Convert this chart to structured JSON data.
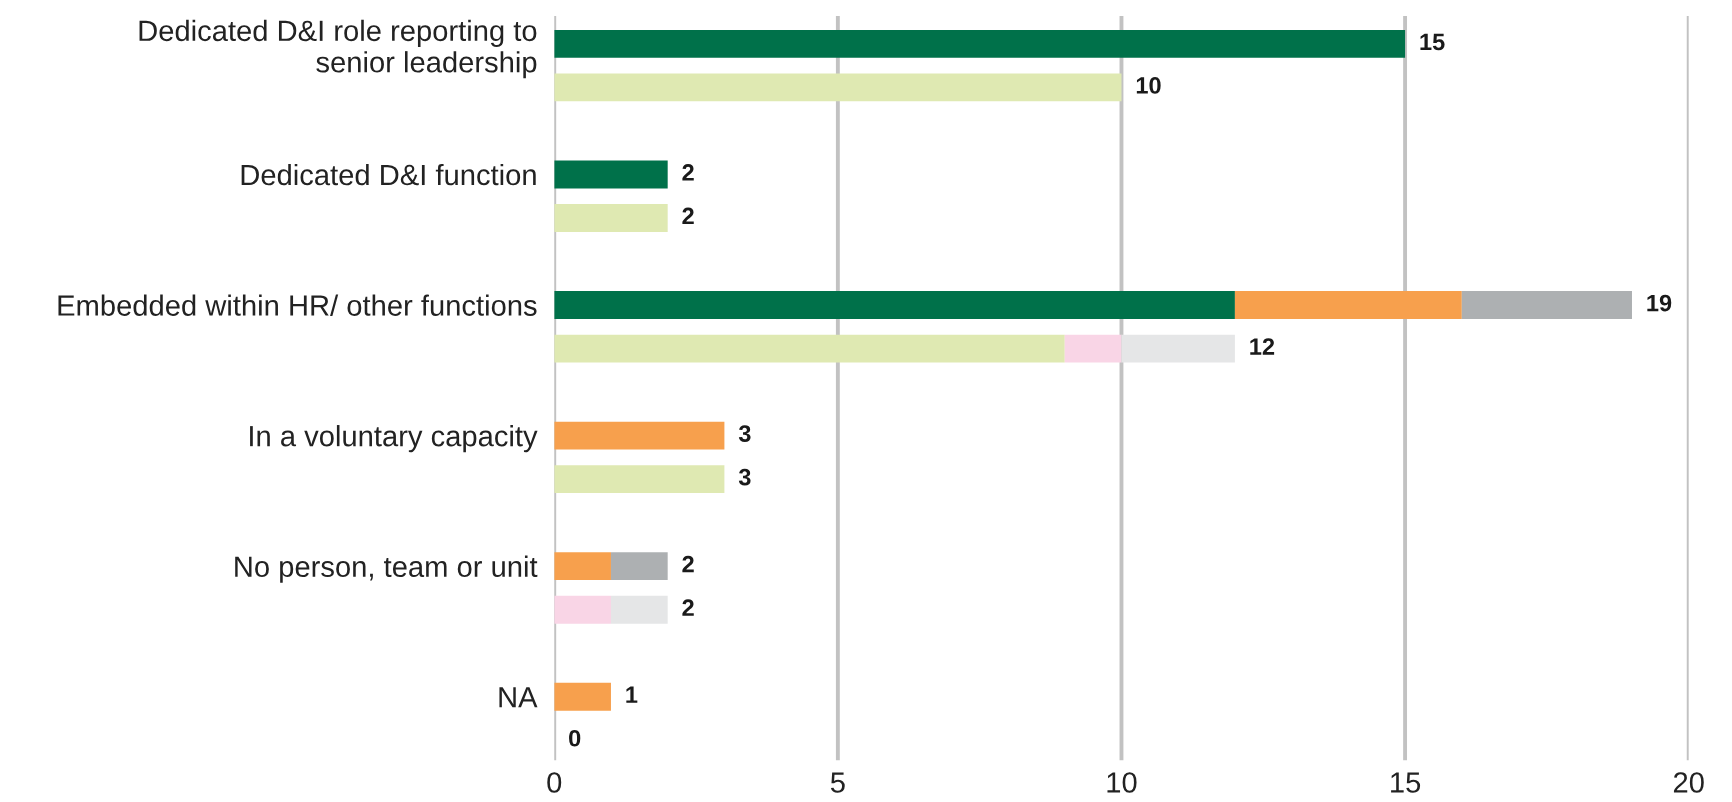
{
  "chart_data": {
    "type": "bar",
    "orientation": "horizontal",
    "stacked": true,
    "categories": [
      "Dedicated D&I role reporting to\nsenior leadership",
      null,
      null,
      "Dedicated D&I function",
      null,
      null,
      "Embedded within HR/ other functions",
      null,
      null,
      "In a voluntary capacity",
      null,
      null,
      "No person, team or unit",
      null,
      null,
      "NA",
      null
    ],
    "series": [
      {
        "color": "#00714a",
        "values": [
          15,
          null,
          null,
          2,
          null,
          null,
          12,
          null,
          null,
          null,
          null,
          null,
          null,
          null,
          null,
          null,
          null
        ]
      },
      {
        "color": "#f7a04d",
        "values": [
          null,
          null,
          null,
          null,
          null,
          null,
          4,
          null,
          null,
          3,
          null,
          null,
          1,
          null,
          null,
          1,
          null
        ]
      },
      {
        "color": "#adb0b2",
        "values": [
          null,
          null,
          null,
          null,
          null,
          null,
          3,
          null,
          null,
          null,
          null,
          null,
          1,
          null,
          null,
          null,
          null
        ]
      },
      {
        "color": "#dfe9b2",
        "values": [
          null,
          10,
          null,
          null,
          2,
          null,
          null,
          9,
          null,
          null,
          3,
          null,
          null,
          null,
          null,
          null,
          null
        ]
      },
      {
        "color": "#f9d5e6",
        "values": [
          null,
          null,
          null,
          null,
          null,
          null,
          null,
          1,
          null,
          null,
          null,
          null,
          null,
          1,
          null,
          null,
          null
        ]
      },
      {
        "color": "#e5e6e7",
        "values": [
          null,
          null,
          null,
          null,
          null,
          null,
          null,
          2,
          null,
          null,
          null,
          null,
          null,
          1,
          null,
          null,
          null
        ]
      }
    ],
    "totals": [
      "15",
      "10",
      null,
      "2",
      "2",
      null,
      "19",
      "12",
      null,
      "3",
      "3",
      null,
      "2",
      "2",
      null,
      "1",
      "0"
    ],
    "xlim": [
      0,
      20
    ],
    "xticks": [
      0,
      5,
      10,
      15,
      20
    ],
    "grid": "x"
  }
}
